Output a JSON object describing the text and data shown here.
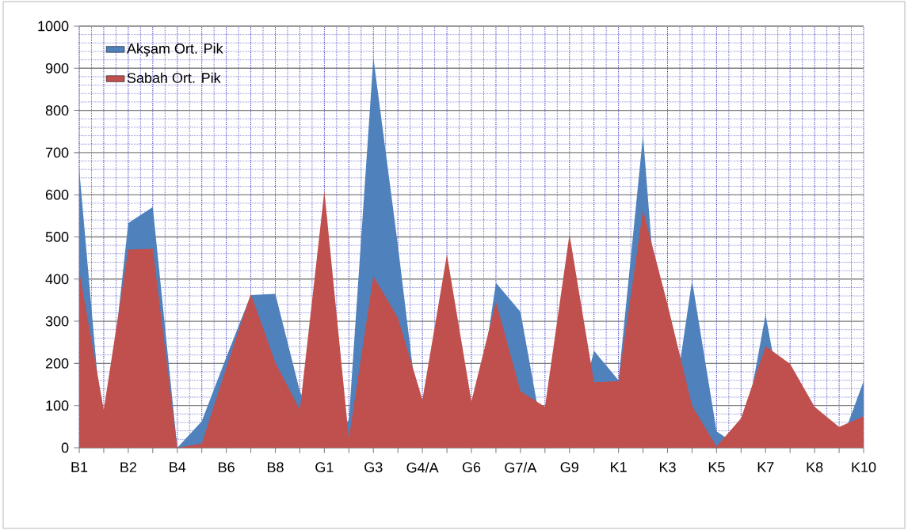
{
  "chart_data": {
    "type": "area",
    "categories": [
      "B1",
      null,
      "B2",
      null,
      "B4",
      null,
      "B6",
      null,
      "B8",
      null,
      "G1",
      null,
      "G3",
      null,
      "G4/A",
      null,
      "G6",
      null,
      "G7/A",
      null,
      "G9",
      null,
      "K1",
      null,
      "K3",
      null,
      "K5",
      null,
      "K7",
      null,
      "K8",
      null,
      "K10"
    ],
    "series": [
      {
        "name": "Akşam Ort. Pik",
        "color": "#4f81bd",
        "values": [
          660,
          null,
          533,
          571,
          0,
          63,
          215,
          362,
          365,
          134,
          null,
          66,
          925,
          480,
          null,
          null,
          null,
          391,
          322,
          null,
          null,
          230,
          160,
          741,
          null,
          397,
          39,
          null,
          315,
          null,
          null,
          null,
          158
        ]
      },
      {
        "name": "Sabah Ort. Pik",
        "color": "#c0504d",
        "values": [
          420,
          90,
          470,
          472,
          0,
          10,
          190,
          365,
          202,
          90,
          609,
          22,
          407,
          308,
          114,
          458,
          110,
          346,
          134,
          97,
          506,
          155,
          158,
          564,
          340,
          100,
          3,
          70,
          241,
          199,
          97,
          49,
          75
        ]
      }
    ],
    "ylim": [
      0,
      1000
    ],
    "yticks": [
      0,
      100,
      200,
      300,
      400,
      500,
      600,
      700,
      800,
      900,
      1000
    ],
    "grid": true,
    "legend": "top left"
  }
}
